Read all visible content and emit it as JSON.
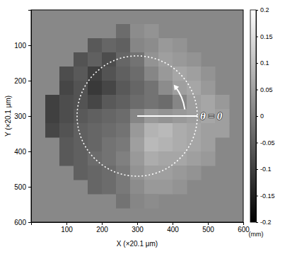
{
  "chart_data": {
    "type": "heatmap",
    "x_label": "X (×20.1 μm)",
    "y_label": "Y (×20.1 μm)",
    "xlim": [
      0,
      600
    ],
    "ylim": [
      0,
      600
    ],
    "xticks": [
      100,
      200,
      300,
      400,
      500,
      600
    ],
    "yticks": [
      100,
      200,
      300,
      400,
      500,
      600
    ],
    "x": [
      20,
      60,
      100,
      140,
      180,
      220,
      260,
      300,
      340,
      380,
      420,
      460,
      500,
      540,
      580
    ],
    "y": [
      20,
      60,
      100,
      140,
      180,
      220,
      260,
      300,
      340,
      380,
      420,
      460,
      500,
      540,
      580
    ],
    "cells": [
      [
        null,
        null,
        null,
        null,
        null,
        null,
        null,
        null,
        null,
        null,
        null,
        null,
        null,
        null,
        null
      ],
      [
        null,
        null,
        null,
        null,
        null,
        null,
        -0.03,
        0.02,
        0.03,
        null,
        null,
        null,
        null,
        null,
        null
      ],
      [
        null,
        null,
        null,
        null,
        -0.06,
        -0.04,
        -0.05,
        0.01,
        0.02,
        0.04,
        0.03,
        null,
        null,
        null,
        null
      ],
      [
        null,
        null,
        null,
        -0.07,
        -0.05,
        -0.08,
        -0.04,
        -0.02,
        0.03,
        0.05,
        0.04,
        0.03,
        null,
        null,
        null
      ],
      [
        null,
        null,
        -0.08,
        -0.06,
        -0.1,
        -0.07,
        -0.05,
        -0.03,
        0.01,
        0.04,
        0.06,
        0.05,
        0.03,
        null,
        null
      ],
      [
        null,
        null,
        -0.09,
        -0.07,
        -0.11,
        -0.09,
        -0.06,
        -0.04,
        -0.02,
        0.02,
        0.05,
        0.06,
        0.04,
        null,
        null
      ],
      [
        null,
        -0.1,
        -0.08,
        -0.07,
        -0.09,
        -0.06,
        -0.05,
        -0.03,
        -0.02,
        -0.03,
        0.01,
        0.05,
        0.06,
        0.04,
        null
      ],
      [
        null,
        -0.1,
        -0.08,
        -0.06,
        -0.05,
        -0.04,
        -0.03,
        0.01,
        0.04,
        0.03,
        0.04,
        0.05,
        0.06,
        0.05,
        null
      ],
      [
        null,
        -0.09,
        -0.07,
        -0.05,
        -0.04,
        -0.03,
        -0.02,
        0.04,
        0.08,
        0.09,
        0.07,
        0.06,
        0.05,
        0.05,
        null
      ],
      [
        null,
        null,
        -0.06,
        -0.05,
        -0.04,
        -0.02,
        -0.01,
        0.05,
        0.09,
        0.08,
        0.07,
        0.06,
        0.05,
        null,
        null
      ],
      [
        null,
        null,
        -0.06,
        -0.05,
        -0.03,
        -0.02,
        0.0,
        0.04,
        0.07,
        0.06,
        0.06,
        0.05,
        0.04,
        null,
        null
      ],
      [
        null,
        null,
        null,
        -0.05,
        -0.04,
        -0.03,
        -0.01,
        0.03,
        0.05,
        0.05,
        0.04,
        0.03,
        null,
        null,
        null
      ],
      [
        null,
        null,
        null,
        null,
        -0.04,
        -0.03,
        -0.01,
        0.02,
        0.04,
        0.04,
        0.03,
        null,
        null,
        null,
        null
      ],
      [
        null,
        null,
        null,
        null,
        null,
        null,
        -0.02,
        0.01,
        0.02,
        null,
        null,
        null,
        null,
        null,
        null
      ],
      [
        null,
        null,
        null,
        null,
        null,
        null,
        null,
        null,
        null,
        null,
        null,
        null,
        null,
        null,
        null
      ]
    ],
    "colorbar": {
      "range": [
        -0.2,
        0.2
      ],
      "ticks": [
        -0.2,
        -0.15,
        -0.1,
        -0.05,
        0,
        0.05,
        0.1,
        0.15,
        0.2
      ],
      "label": "(mm)"
    },
    "reference_circle": {
      "x": 300,
      "y": 300,
      "r": 170
    },
    "annotations": [
      {
        "text": "θ = 0",
        "x": 478,
        "y": 300
      }
    ]
  }
}
